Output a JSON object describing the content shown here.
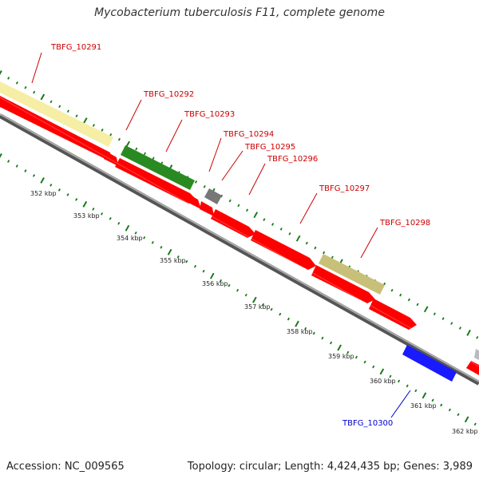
{
  "title": "Mycobacterium tuberculosis F11, complete genome",
  "footer": {
    "accession": "Accession: NC_009565",
    "topology": "Topology: circular; Length: 4,424,435 bp; Genes: 3,989"
  },
  "colors": {
    "cds": "#ff0000",
    "gene_yellow": "#f5eea4",
    "gene_green": "#2a8a22",
    "gene_gray": "#777777",
    "gene_olive": "#c8c078",
    "gene_blue": "#1a1aff",
    "backbone": "#888888",
    "tick": "#1a7a1a",
    "label_red": "#cc0000",
    "label_blue": "#0000cc"
  },
  "kbp_ticks": [
    "352 kbp",
    "353 kbp",
    "354 kbp",
    "355 kbp",
    "356 kbp",
    "357 kbp",
    "358 kbp",
    "359 kbp",
    "360 kbp",
    "361 kbp",
    "362 kbp"
  ],
  "gene_labels": [
    {
      "text": "TBFG_10291",
      "color": "red"
    },
    {
      "text": "TBFG_10292",
      "color": "red"
    },
    {
      "text": "TBFG_10293",
      "color": "red"
    },
    {
      "text": "TBFG_10294",
      "color": "red"
    },
    {
      "text": "TBFG_10295",
      "color": "red"
    },
    {
      "text": "TBFG_10296",
      "color": "red"
    },
    {
      "text": "TBFG_10297",
      "color": "red"
    },
    {
      "text": "TBFG_10298",
      "color": "red"
    },
    {
      "text": "TBFG_10300",
      "color": "blue"
    }
  ]
}
